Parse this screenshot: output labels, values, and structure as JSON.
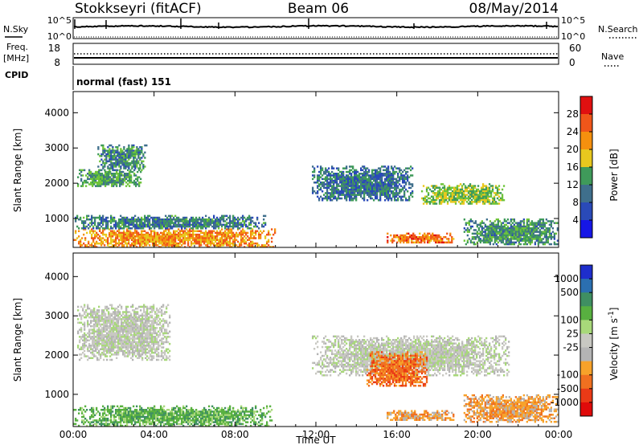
{
  "header": {
    "station": "Stokkseyri (fitACF)",
    "beam": "Beam 06",
    "date": "08/May/2014"
  },
  "strips": {
    "nsky_label": "N.Sky",
    "nsky_ticks": [
      "10^5",
      "10^0"
    ],
    "nsearch_label": "N.Search",
    "nsearch_ticks": [
      "10^5",
      "10^0"
    ],
    "freq_label": "Freq.",
    "freq_unit": "[MHz]",
    "freq_ticks": [
      "18",
      "8"
    ],
    "nave_label": "Nave",
    "nave_ticks": [
      "60",
      "0"
    ],
    "cpid_label": "CPID",
    "cpid_value": "normal (fast) 151"
  },
  "axis_labels": {
    "ylabel": "Slant Range [km]",
    "xlabel": "Time UT"
  },
  "colors": {
    "power": [
      "#1616e6",
      "#2a4ab8",
      "#3f6f8c",
      "#3f9a5a",
      "#6fc43a",
      "#e8c81e",
      "#f5900e",
      "#f0561a",
      "#e01010"
    ],
    "velocity": [
      "#1e2ecc",
      "#2b6fb0",
      "#3f8f62",
      "#58b040",
      "#a8d87a",
      "#c8c8c2",
      "#b4b4b4",
      "#f7a22a",
      "#f07020",
      "#ea3a16",
      "#e00a0a"
    ]
  },
  "chart_data": [
    {
      "type": "heatmap",
      "title": "",
      "xlabel": "",
      "ylabel": "Slant Range [km]",
      "xlim": [
        "00:00",
        "24:00"
      ],
      "ylim": [
        180,
        4600
      ],
      "x_ticks": [
        "00:00",
        "04:00",
        "08:00",
        "12:00",
        "16:00",
        "20:00",
        "00:00"
      ],
      "y_ticks": [
        "1000",
        "2000",
        "3000",
        "4000"
      ],
      "colorbar": {
        "label": "Power [dB]",
        "range": [
          0,
          32
        ],
        "ticks": [
          "4",
          "8",
          "12",
          "16",
          "20",
          "24",
          "28"
        ]
      },
      "patches": [
        {
          "t_start": 0.0,
          "t_end": 10.0,
          "range_low": 200,
          "range_high": 720,
          "level": 24
        },
        {
          "t_start": 0.2,
          "t_end": 3.3,
          "range_low": 1900,
          "range_high": 2400,
          "level": 12
        },
        {
          "t_start": 1.2,
          "t_end": 3.6,
          "range_low": 2350,
          "range_high": 3100,
          "level": 10
        },
        {
          "t_start": 0.0,
          "t_end": 9.6,
          "range_low": 700,
          "range_high": 1100,
          "level": 9
        },
        {
          "t_start": 11.8,
          "t_end": 16.8,
          "range_low": 1500,
          "range_high": 2500,
          "level": 8
        },
        {
          "t_start": 15.5,
          "t_end": 18.8,
          "range_low": 300,
          "range_high": 600,
          "level": 26
        },
        {
          "t_start": 17.2,
          "t_end": 21.3,
          "range_low": 1400,
          "range_high": 2000,
          "level": 16
        },
        {
          "t_start": 19.3,
          "t_end": 24.0,
          "range_low": 250,
          "range_high": 1000,
          "level": 11
        }
      ]
    },
    {
      "type": "heatmap",
      "title": "",
      "xlabel": "Time UT",
      "ylabel": "Slant Range [km]",
      "xlim": [
        "00:00",
        "24:00"
      ],
      "ylim": [
        180,
        4600
      ],
      "x_ticks": [
        "00:00",
        "04:00",
        "08:00",
        "12:00",
        "16:00",
        "20:00",
        "00:00"
      ],
      "y_ticks": [
        "1000",
        "2000",
        "3000",
        "4000"
      ],
      "colorbar": {
        "label": "Velocity [m s^-1]",
        "ticks": [
          "1000",
          "500",
          "100",
          "25",
          "-25",
          "-100",
          "-500",
          "-1000"
        ]
      },
      "patches": [
        {
          "t_start": 0.0,
          "t_end": 9.8,
          "range_low": 200,
          "range_high": 720,
          "velocity": 150
        },
        {
          "t_start": 0.2,
          "t_end": 4.8,
          "range_low": 1900,
          "range_high": 3300,
          "velocity": 0
        },
        {
          "t_start": 11.8,
          "t_end": 21.5,
          "range_low": 1500,
          "range_high": 2500,
          "velocity": 0
        },
        {
          "t_start": 15.5,
          "t_end": 18.8,
          "range_low": 350,
          "range_high": 600,
          "velocity": -150
        },
        {
          "t_start": 14.5,
          "t_end": 17.5,
          "range_low": 1200,
          "range_high": 2100,
          "velocity": -400
        },
        {
          "t_start": 19.3,
          "t_end": 24.0,
          "range_low": 300,
          "range_high": 1000,
          "velocity": -80
        }
      ]
    }
  ]
}
